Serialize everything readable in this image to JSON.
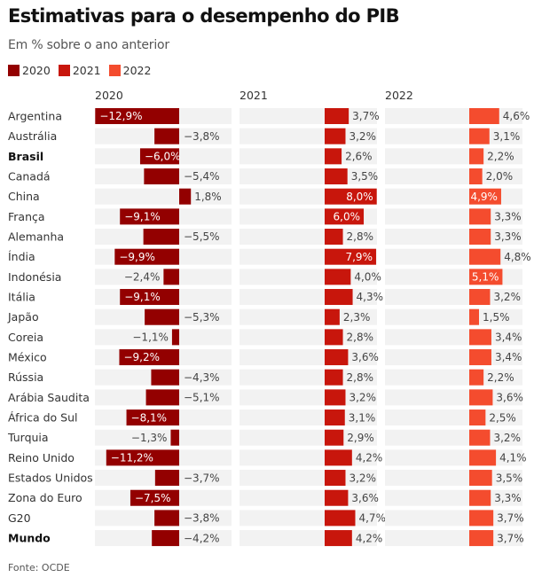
{
  "header": {
    "title": "Estimativas para o desempenho do PIB",
    "subtitle": "Em % sobre o ano anterior"
  },
  "legend": [
    {
      "label": "2020",
      "color": "#930000"
    },
    {
      "label": "2021",
      "color": "#c8160c"
    },
    {
      "label": "2022",
      "color": "#f44c2e"
    }
  ],
  "footer": {
    "source": "Fonte: OCDE"
  },
  "chart_data": {
    "type": "bar",
    "orientation": "horizontal",
    "layout": "small-multiples",
    "title": "Estimativas para o desempenho do PIB",
    "subtitle": "Em % sobre o ano anterior",
    "unit": "%",
    "decimal_separator": ",",
    "xlim": [
      -13,
      8
    ],
    "grid": false,
    "legend_position": "top-left",
    "categories": [
      "Argentina",
      "Austrália",
      "Brasil",
      "Canadá",
      "China",
      "França",
      "Alemanha",
      "Índia",
      "Indonésia",
      "Itália",
      "Japão",
      "Coreia",
      "México",
      "Rússia",
      "Arábia Saudita",
      "África do Sul",
      "Turquia",
      "Reino Unido",
      "Estados Unidos",
      "Zona do Euro",
      "G20",
      "Mundo"
    ],
    "bold_categories": [
      "Brasil",
      "Mundo"
    ],
    "series": [
      {
        "name": "2020",
        "color": "#930000",
        "values": [
          -12.9,
          -3.8,
          -6.0,
          -5.4,
          1.8,
          -9.1,
          -5.5,
          -9.9,
          -2.4,
          -9.1,
          -5.3,
          -1.1,
          -9.2,
          -4.3,
          -5.1,
          -8.1,
          -1.3,
          -11.2,
          -3.7,
          -7.5,
          -3.8,
          -4.2
        ]
      },
      {
        "name": "2021",
        "color": "#c8160c",
        "values": [
          3.7,
          3.2,
          2.6,
          3.5,
          8.0,
          6.0,
          2.8,
          7.9,
          4.0,
          4.3,
          2.3,
          2.8,
          3.6,
          2.8,
          3.2,
          3.1,
          2.9,
          4.2,
          3.2,
          3.6,
          4.7,
          4.2
        ]
      },
      {
        "name": "2022",
        "color": "#f44c2e",
        "values": [
          4.6,
          3.1,
          2.2,
          2.0,
          4.9,
          3.3,
          3.3,
          4.8,
          5.1,
          3.2,
          1.5,
          3.4,
          3.4,
          2.2,
          3.6,
          2.5,
          3.2,
          4.1,
          3.5,
          3.3,
          3.7,
          3.7
        ]
      }
    ],
    "panel_background": "#f2f2f2",
    "source": "Fonte: OCDE"
  }
}
